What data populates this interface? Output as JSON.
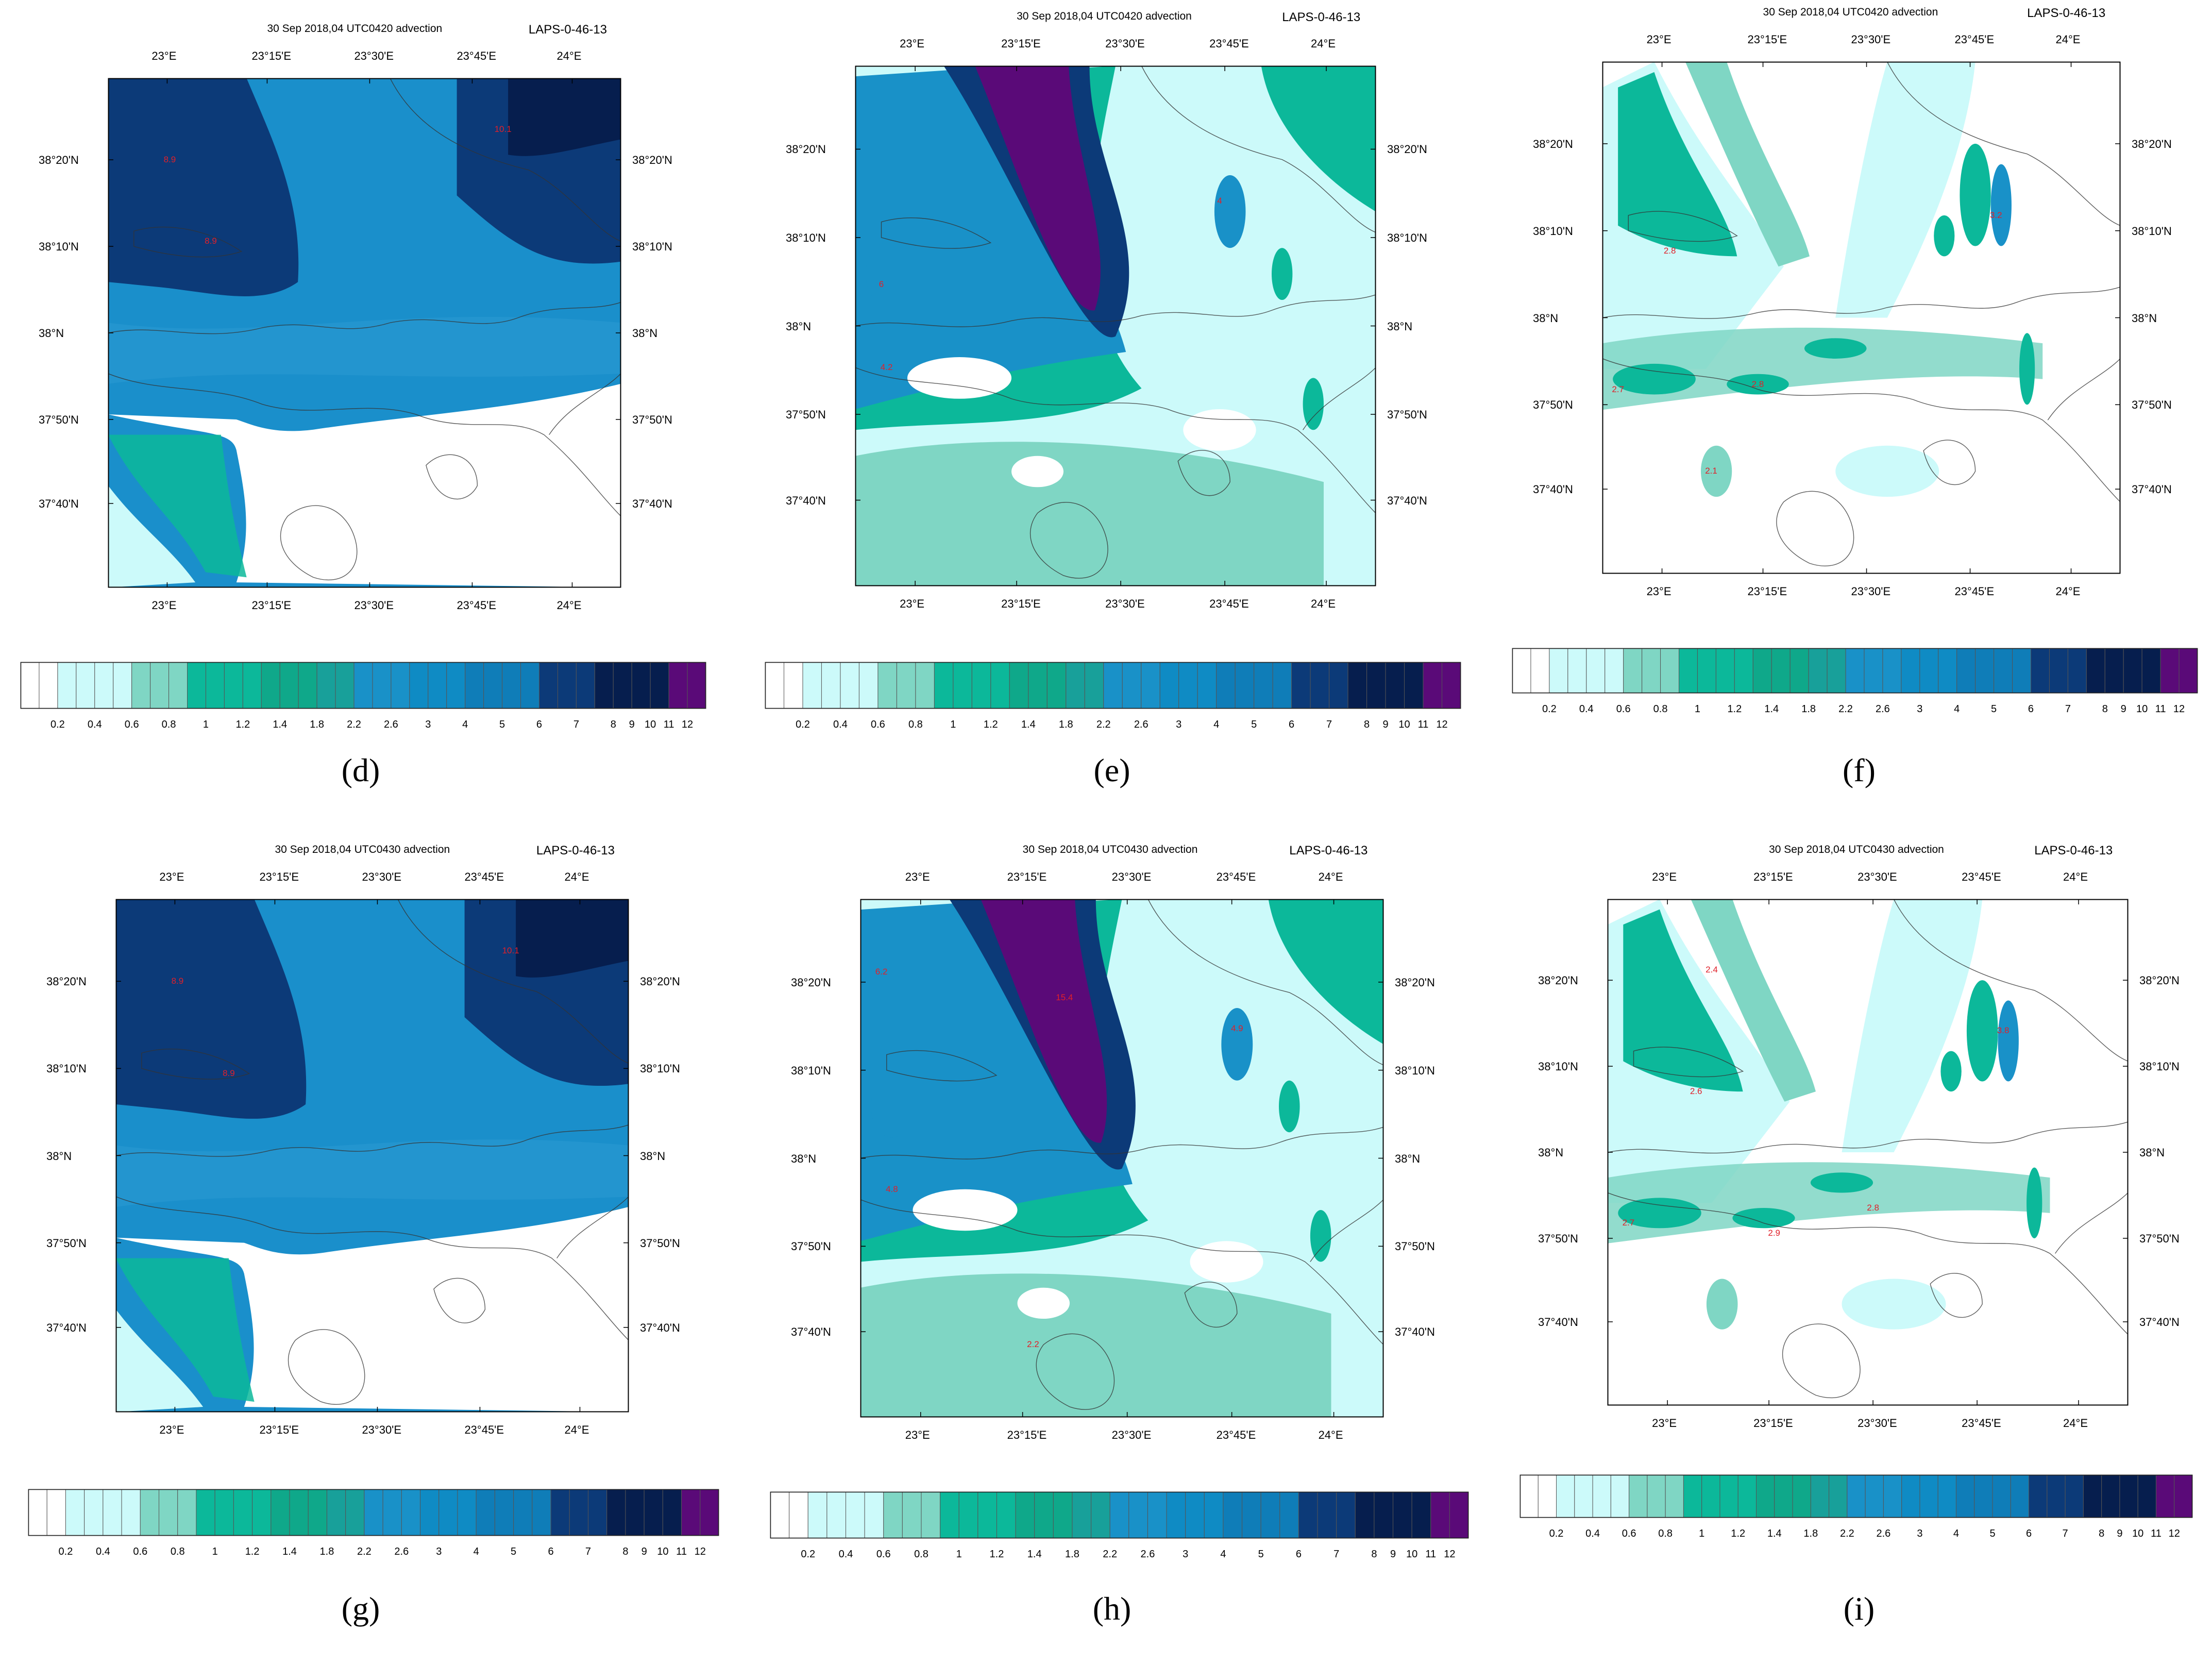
{
  "figure": {
    "colorbar": {
      "levels": [
        "0.2",
        "0.4",
        "0.6",
        "0.8",
        "1",
        "1.2",
        "1.4",
        "1.8",
        "2.2",
        "2.6",
        "3",
        "4",
        "5",
        "6",
        "7",
        "8",
        "9",
        "10",
        "11",
        "12"
      ],
      "colors": [
        "#ffffff",
        "#ffffff",
        "#ccfafa",
        "#ccfafa",
        "#ccfafa",
        "#ccfafa",
        "#7fd6c4",
        "#7fd6c4",
        "#7fd6c4",
        "#0cb89a",
        "#0cb89a",
        "#0cb89a",
        "#0cb89a",
        "#0fa88a",
        "#0fa88a",
        "#0fa88a",
        "#18a09a",
        "#18a09a",
        "#1991c8",
        "#1991c8",
        "#1991c8",
        "#0f8bc4",
        "#0f8bc4",
        "#0f8bc4",
        "#0f7db8",
        "#0f7db8",
        "#0f7db8",
        "#0f7db8",
        "#0c3a78",
        "#0c3a78",
        "#0c3a78",
        "#061e4e",
        "#061e4e",
        "#061e4e",
        "#061e4e",
        "#5a0a78",
        "#5a0a78"
      ]
    },
    "palette": {
      "white": "#ffffff",
      "light_cyan": "#ccfafa",
      "aquamarine": "#7fd6c4",
      "green": "#0cb89a",
      "sky_blue": "#1991c8",
      "navy": "#0c3a78",
      "dark_navy": "#061e4e",
      "purple": "#5a0a78",
      "value_label": "#e0202a"
    },
    "longitude_ticks": [
      "23°E",
      "23°15'E",
      "23°30'E",
      "23°45'E",
      "24°E"
    ],
    "latitude_ticks": [
      "38°20'N",
      "38°10'N",
      "38°N",
      "37°50'N",
      "37°40'N"
    ],
    "panels": [
      {
        "letter": "(d)",
        "title": "30 Sep 2018,04 UTC0420 advection",
        "id": "LAPS-0-46-13",
        "values": [
          "8.9",
          "8.9",
          "10.1"
        ]
      },
      {
        "letter": "(e)",
        "title": "30 Sep 2018,04 UTC0420 advection",
        "id": "LAPS-0-46-13",
        "values": [
          "4",
          "4.2",
          "6"
        ]
      },
      {
        "letter": "(f)",
        "title": "30 Sep 2018,04 UTC0420 advection",
        "id": "LAPS-0-46-13",
        "values": [
          "2.8",
          "2.7",
          "2.8",
          "2.1",
          "3.2"
        ]
      },
      {
        "letter": "(g)",
        "title": "30 Sep 2018,04 UTC0430 advection",
        "id": "LAPS-0-46-13",
        "values": [
          "8.9",
          "8.9",
          "10.1"
        ]
      },
      {
        "letter": "(h)",
        "title": "30 Sep 2018,04 UTC0430 advection",
        "id": "LAPS-0-46-13",
        "values": [
          "15.4",
          "4.9",
          "4.8",
          "6.2",
          "2.2"
        ]
      },
      {
        "letter": "(i)",
        "title": "30 Sep 2018,04 UTC0430 advection",
        "id": "LAPS-0-46-13",
        "values": [
          "2.4",
          "2.6",
          "2.7",
          "2.9",
          "3.8",
          "2.8"
        ]
      }
    ]
  }
}
